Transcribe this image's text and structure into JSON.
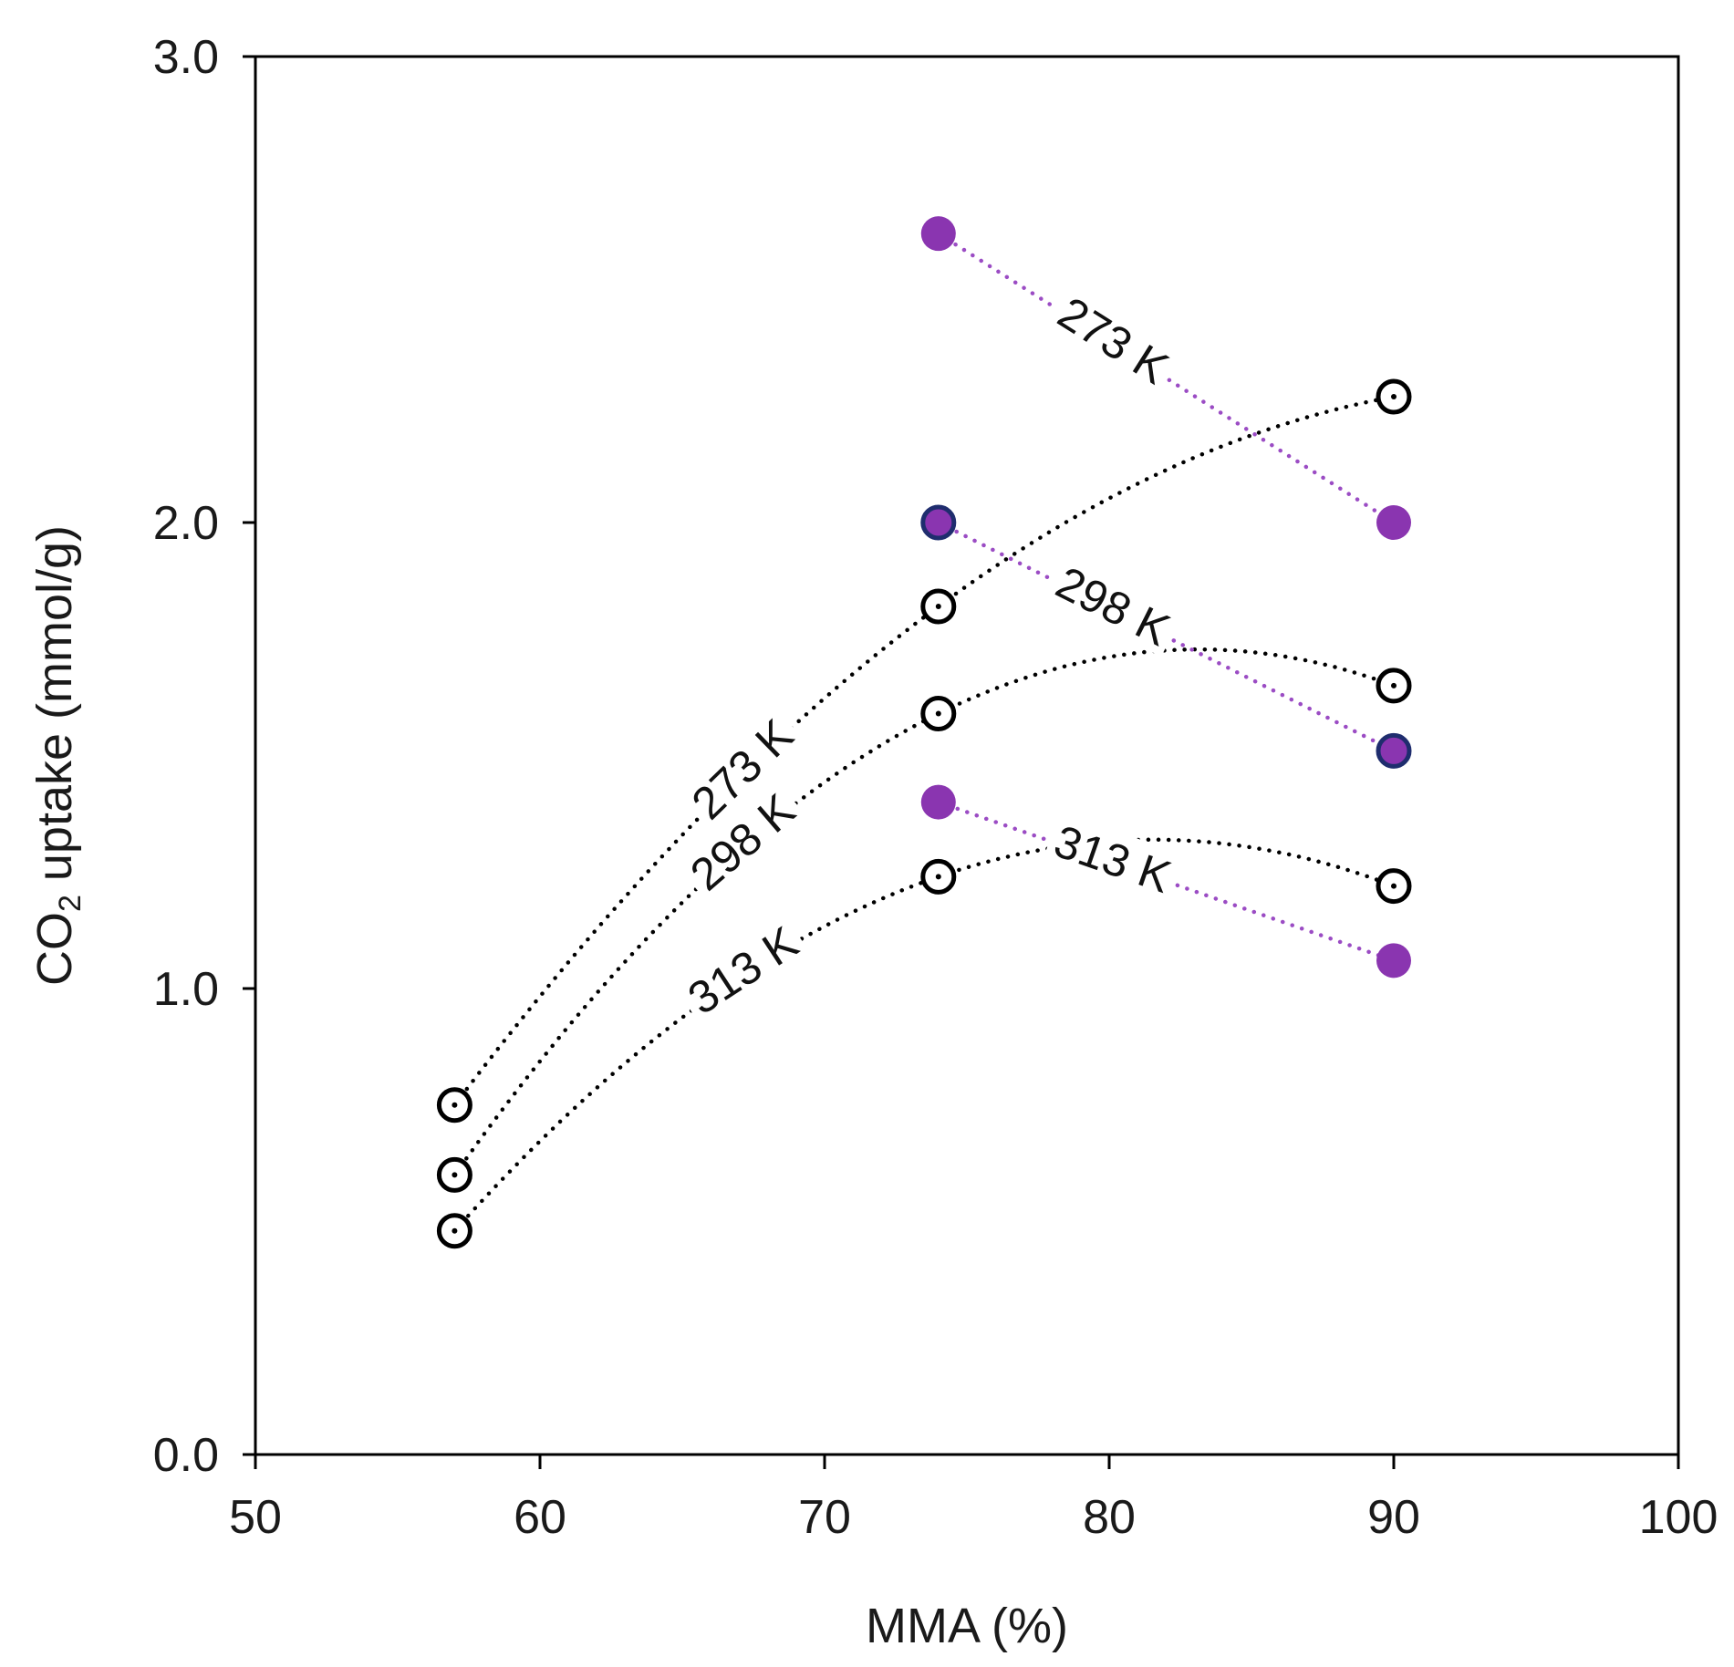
{
  "chart_data": {
    "type": "scatter",
    "title": "",
    "xlabel": "MMA (%)",
    "ylabel": {
      "pre": "CO",
      "sub": "2",
      "post": " uptake (mmol/g)"
    },
    "xlim": [
      50,
      100
    ],
    "ylim": [
      0.0,
      3.0
    ],
    "xticks": [
      "50",
      "60",
      "70",
      "80",
      "90",
      "100"
    ],
    "yticks": [
      "0.0",
      "1.0",
      "2.0",
      "3.0"
    ],
    "grid": false,
    "colors": {
      "open_marker": "#000000",
      "purple": "#8a35b0",
      "navy": "#1f2d6e",
      "dotted_black": "#000000",
      "dotted_purple": "#9b4cc4"
    },
    "series": [
      {
        "name": "273 K",
        "group": "open",
        "x": [
          57,
          74,
          90
        ],
        "values": [
          0.75,
          1.82,
          2.27
        ]
      },
      {
        "name": "298 K",
        "group": "open",
        "x": [
          57,
          74,
          90
        ],
        "values": [
          0.6,
          1.59,
          1.65
        ]
      },
      {
        "name": "313 K",
        "group": "open",
        "x": [
          57,
          74,
          90
        ],
        "values": [
          0.48,
          1.24,
          1.22
        ]
      },
      {
        "name": "273 K",
        "group": "filled",
        "x": [
          74,
          90
        ],
        "values": [
          2.62,
          2.0
        ]
      },
      {
        "name": "298 K",
        "group": "filled",
        "x": [
          74,
          90
        ],
        "values": [
          2.0,
          1.51
        ]
      },
      {
        "name": "313 K",
        "group": "filled",
        "x": [
          74,
          90
        ],
        "values": [
          1.4,
          1.06
        ]
      }
    ]
  }
}
